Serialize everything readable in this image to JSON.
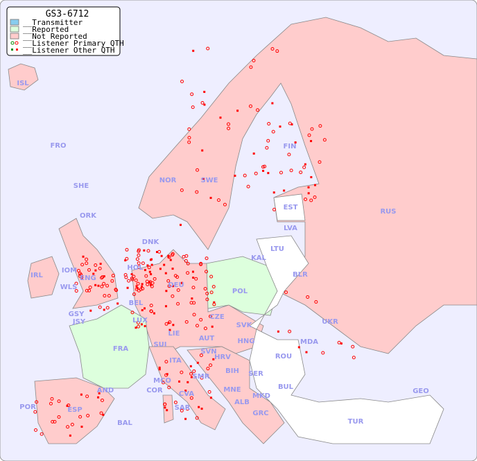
{
  "title": "GS3-6712",
  "legend": [
    {
      "label": "__Transmitter",
      "color": "#88ccee"
    },
    {
      "label": "__Reported",
      "color": "#ddffdd"
    },
    {
      "label": "__Not Reported",
      "color": "#ffcccc"
    },
    {
      "label": "__Listener Primary QTH",
      "marker": "circle"
    },
    {
      "label": "__Listener Other QTH",
      "marker": "square"
    }
  ],
  "colors": {
    "sea": "#eeeeff",
    "not_reported": "#ffcccc",
    "reported": "#ddffdd",
    "no_data": "#ffffff",
    "listener": "#ff0000",
    "reported_listener": "#008800",
    "label": "#9999ee"
  },
  "countries": [
    "ISL",
    "FRO",
    "SHE",
    "ORK",
    "NOR",
    "SWE",
    "FIN",
    "RUS",
    "EST",
    "LVA",
    "LTU",
    "KAL",
    "BLR",
    "DNK",
    "HOL",
    "DEU",
    "POL",
    "UKR",
    "IRL",
    "IOM",
    "WLS",
    "ENG",
    "GSY",
    "JSY",
    "BEL",
    "LUX",
    "CZE",
    "SVK",
    "HNG",
    "MDA",
    "AUT",
    "LIE",
    "SUI",
    "FRA",
    "ITA",
    "SVN",
    "HRV",
    "ROU",
    "BIH",
    "SER",
    "BUL",
    "MNE",
    "MCO",
    "COR",
    "CVA",
    "SAR",
    "ALB",
    "MKD",
    "GRC",
    "TUR",
    "GEO",
    "AND",
    "POR",
    "ESP",
    "BAL",
    "SMR"
  ]
}
